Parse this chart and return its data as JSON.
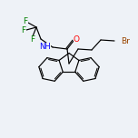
{
  "bg_color": "#eef2f7",
  "line_color": "#000000",
  "atom_colors": {
    "O": "#ff0000",
    "N": "#0000ff",
    "F": "#008000",
    "Br": "#994400",
    "C": "#000000"
  },
  "figsize": [
    1.52,
    1.52
  ],
  "dpi": 100
}
